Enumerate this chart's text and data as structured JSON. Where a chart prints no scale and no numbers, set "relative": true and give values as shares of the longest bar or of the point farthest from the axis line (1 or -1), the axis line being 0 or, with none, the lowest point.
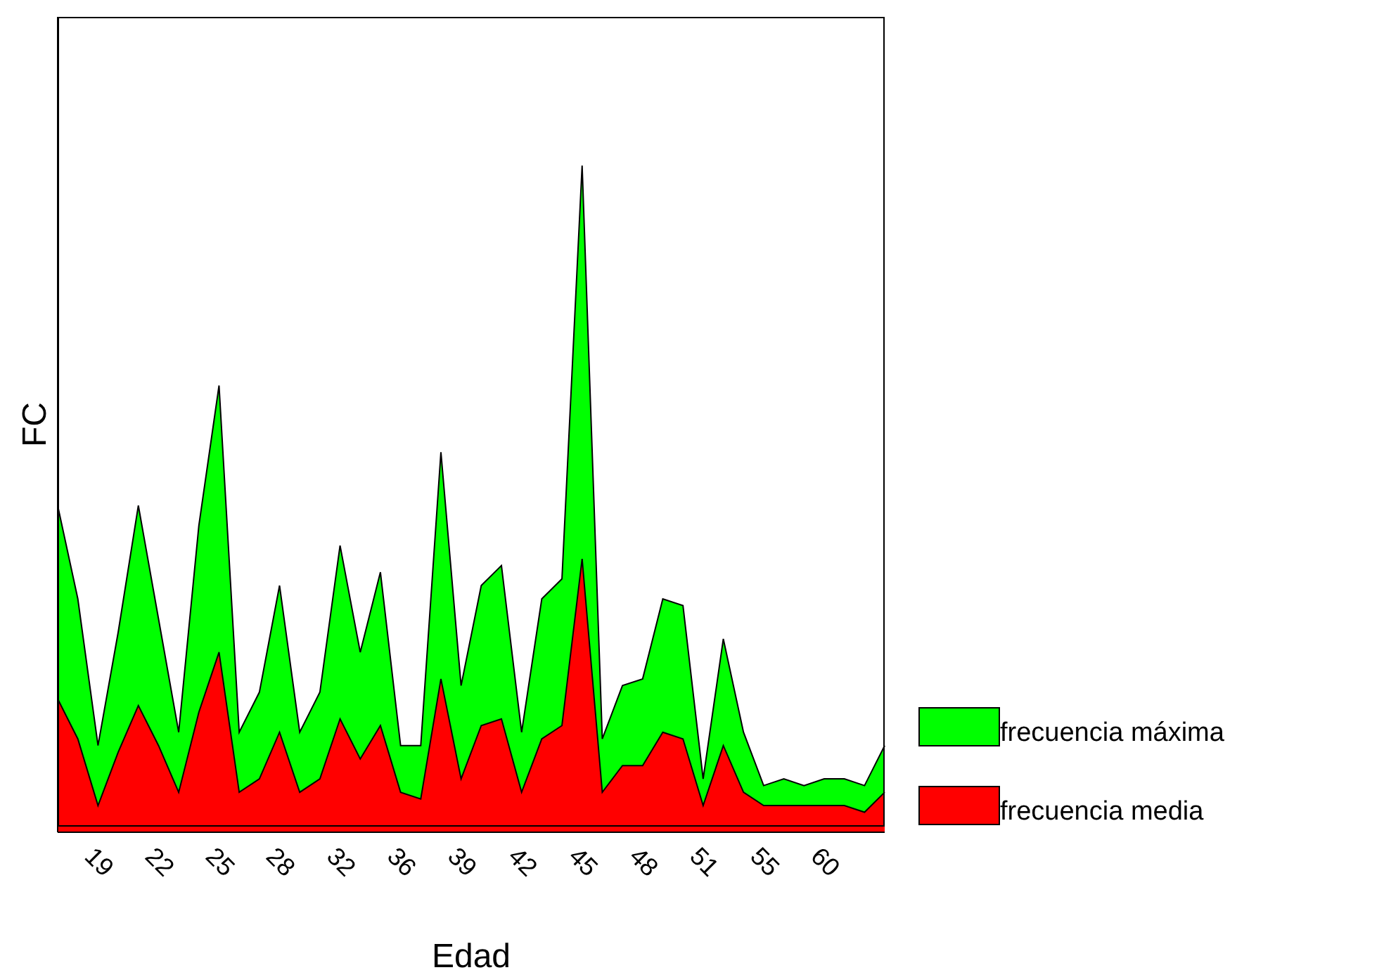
{
  "chart_data": {
    "type": "area",
    "relative": true,
    "xlabel": "Edad",
    "ylabel": "FC",
    "legend": "right",
    "categories": [
      null,
      null,
      "19",
      null,
      null,
      "22",
      null,
      null,
      "25",
      null,
      null,
      "28",
      null,
      null,
      "32",
      null,
      null,
      "36",
      null,
      null,
      "39",
      null,
      null,
      "42",
      null,
      null,
      "45",
      null,
      null,
      "48",
      null,
      null,
      "51",
      null,
      null,
      "55",
      null,
      null,
      "60",
      null,
      null,
      null
    ],
    "series": [
      {
        "name": "frecuencia máxima",
        "color": "#00ff00",
        "values": [
          0.49,
          0.35,
          0.13,
          0.3,
          0.49,
          0.32,
          0.15,
          0.46,
          0.67,
          0.15,
          0.21,
          0.37,
          0.15,
          0.21,
          0.43,
          0.27,
          0.39,
          0.13,
          0.13,
          0.57,
          0.22,
          0.37,
          0.4,
          0.15,
          0.35,
          0.38,
          1,
          0.14,
          0.22,
          0.23,
          0.35,
          0.34,
          0.08,
          0.29,
          0.15,
          0.07,
          0.08,
          0.07,
          0.08,
          0.08,
          0.07,
          0.13
        ]
      },
      {
        "name": "frecuencia media",
        "color": "#ff0000",
        "values": [
          0.2,
          0.14,
          0.04,
          0.12,
          0.19,
          0.13,
          0.06,
          0.18,
          0.27,
          0.06,
          0.08,
          0.15,
          0.06,
          0.08,
          0.17,
          0.11,
          0.16,
          0.06,
          0.05,
          0.23,
          0.08,
          0.16,
          0.17,
          0.06,
          0.14,
          0.16,
          0.41,
          0.06,
          0.1,
          0.1,
          0.15,
          0.14,
          0.04,
          0.13,
          0.06,
          0.04,
          0.04,
          0.04,
          0.04,
          0.04,
          0.03,
          0.06
        ]
      }
    ]
  }
}
